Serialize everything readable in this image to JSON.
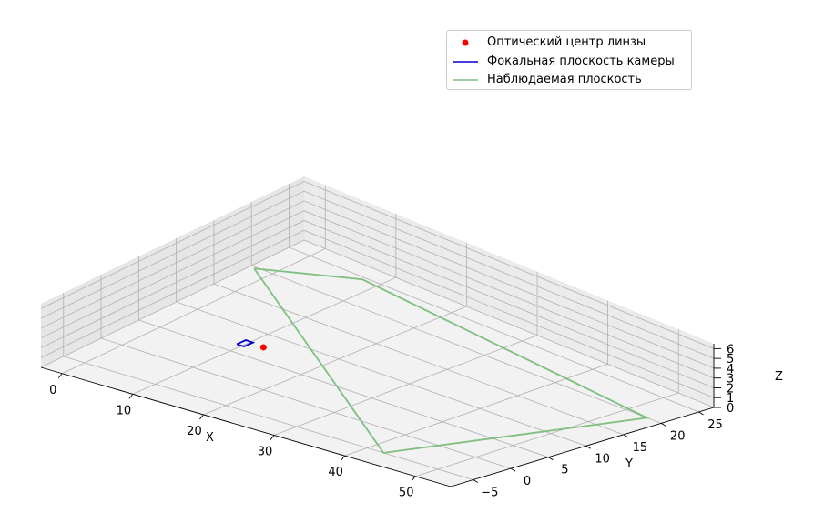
{
  "chart_data": {
    "type": "line",
    "projection": "3d",
    "xlabel": "X",
    "ylabel": "Y",
    "zlabel": "Z",
    "xlim": [
      -3,
      55
    ],
    "ylim": [
      -8,
      27
    ],
    "zlim": [
      0,
      6.5
    ],
    "x_ticks": [
      "0",
      "10",
      "20",
      "30",
      "40",
      "50"
    ],
    "y_ticks": [
      "−5",
      "0",
      "5",
      "10",
      "15",
      "20",
      "25"
    ],
    "z_ticks": [
      "0",
      "1",
      "2",
      "3",
      "4",
      "5",
      "6"
    ],
    "grid": true,
    "legend_position": "upper right",
    "series": [
      {
        "name": "Оптический центр линзы",
        "kind": "point",
        "color": "#ff0000",
        "points": [
          [
            12,
            7.5,
            0
          ]
        ]
      },
      {
        "name": "Фокальная плоскость камеры",
        "kind": "line",
        "color": "#0000cc",
        "points": [
          [
            9.3,
            6.5,
            0
          ],
          [
            10.3,
            6.5,
            0
          ],
          [
            10.3,
            7.7,
            0
          ],
          [
            9.3,
            7.7,
            0
          ],
          [
            9.3,
            6.5,
            0
          ]
        ]
      },
      {
        "name": "Наблюдаемая плоскость",
        "kind": "line",
        "color": "#7fbf7f",
        "points": [
          [
            -2.3,
            19.7,
            0
          ],
          [
            7.8,
            24.6,
            0
          ],
          [
            53,
            20,
            0
          ],
          [
            42.3,
            -5,
            0
          ],
          [
            -2.3,
            19.7,
            0
          ]
        ]
      }
    ]
  }
}
